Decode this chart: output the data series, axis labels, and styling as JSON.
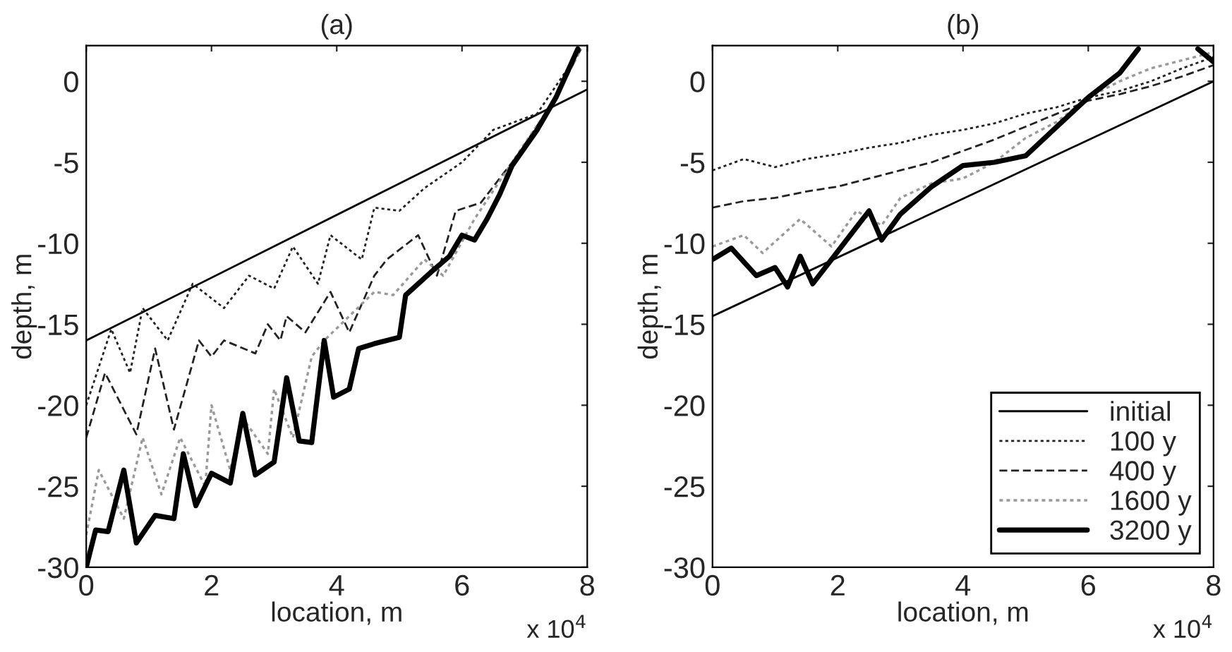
{
  "chart_data": [
    {
      "type": "line",
      "title": "(a)",
      "xlabel": "location, m",
      "ylabel": "depth, m",
      "annotations": [
        "x 10$^{4}$"
      ],
      "xlim": [
        0,
        8
      ],
      "ylim": [
        -30,
        2.2
      ],
      "xticks": [
        0,
        2,
        4,
        6,
        8
      ],
      "yticks": [
        -30,
        -25,
        -20,
        -15,
        -10,
        -5,
        0
      ],
      "grid": false,
      "legend": false,
      "series": [
        {
          "color": "#000000",
          "line_style": "solid",
          "x": [
            0,
            8
          ],
          "values": [
            -16,
            -0.5
          ]
        },
        {
          "color": "#222222",
          "line_style": "dotted",
          "x": [
            0,
            0.4,
            0.7,
            0.9,
            1.3,
            1.7,
            2.2,
            2.6,
            3.0,
            3.3,
            3.7,
            3.9,
            4.4,
            4.6,
            5.0,
            5.4,
            6.0,
            6.5,
            7.2,
            7.9
          ],
          "values": [
            -20,
            -15.3,
            -18,
            -14,
            -16,
            -12.5,
            -14,
            -12,
            -12.8,
            -10.2,
            -12.5,
            -9.5,
            -11,
            -7.8,
            -8,
            -6.6,
            -5,
            -3,
            -2,
            2
          ]
        },
        {
          "color": "#222222",
          "line_style": "dashed",
          "x": [
            0,
            0.3,
            0.8,
            1.1,
            1.4,
            1.8,
            2.0,
            2.2,
            2.7,
            2.9,
            3.1,
            3.2,
            3.5,
            3.9,
            4.2,
            4.6,
            4.8,
            5.3,
            5.6,
            5.9,
            6.3,
            6.9,
            7.5,
            7.9
          ],
          "values": [
            -22,
            -18,
            -21.8,
            -16.5,
            -21.5,
            -16,
            -17,
            -16,
            -16.8,
            -15,
            -16,
            -14.5,
            -15.5,
            -13,
            -15.5,
            -12,
            -11,
            -9.5,
            -12,
            -8,
            -7.5,
            -4.5,
            -1,
            2
          ]
        },
        {
          "color": "#999999",
          "line_style": "dotted",
          "x": [
            0,
            0.2,
            0.6,
            0.9,
            1.2,
            1.5,
            1.9,
            2.0,
            2.3,
            2.5,
            2.9,
            3.0,
            3.3,
            3.6,
            3.8,
            4.6,
            4.9,
            5.4,
            5.7,
            6.2,
            6.8,
            7.5,
            7.9
          ],
          "values": [
            -28,
            -24,
            -27,
            -22,
            -25.5,
            -22,
            -25,
            -20,
            -24,
            -20.8,
            -23,
            -19,
            -22,
            -17,
            -16,
            -13,
            -13.2,
            -11,
            -12,
            -8.5,
            -5,
            -1,
            2
          ]
        },
        {
          "color": "#000000",
          "line_style": "solid",
          "x": [
            0,
            0.15,
            0.35,
            0.6,
            0.8,
            1.1,
            1.4,
            1.55,
            1.75,
            2.0,
            2.3,
            2.5,
            2.7,
            3.0,
            3.2,
            3.4,
            3.6,
            3.8,
            3.95,
            4.2,
            4.35,
            4.6,
            5.0,
            5.1,
            5.5,
            5.8,
            6.0,
            6.2,
            6.4,
            6.6,
            6.8,
            7.2,
            7.5,
            7.85
          ],
          "values": [
            -30,
            -27.7,
            -27.8,
            -24,
            -28.5,
            -26.8,
            -27,
            -23,
            -26.2,
            -24.2,
            -24.8,
            -20.5,
            -24.3,
            -23.5,
            -18.3,
            -22.2,
            -22.3,
            -16,
            -19.5,
            -19,
            -16.5,
            -16.2,
            -15.8,
            -13.2,
            -11.8,
            -10.8,
            -9.5,
            -9.8,
            -8.5,
            -7,
            -5.2,
            -3,
            -1,
            2
          ]
        }
      ]
    },
    {
      "type": "line",
      "title": "(b)",
      "xlabel": "location, m",
      "ylabel": "depth, m",
      "annotations": [
        "x 10$^{4}$"
      ],
      "xlim": [
        0,
        8
      ],
      "ylim": [
        -30,
        2.2
      ],
      "xticks": [
        0,
        2,
        4,
        6,
        8
      ],
      "yticks": [
        -30,
        -25,
        -20,
        -15,
        -10,
        -5,
        0
      ],
      "grid": false,
      "legend": "bottom right",
      "series": [
        {
          "name": "initial",
          "color": "#000000",
          "line_style": "solid",
          "x": [
            0,
            8
          ],
          "values": [
            -14.5,
            0
          ]
        },
        {
          "name": "100 y",
          "color": "#222222",
          "line_style": "dotted",
          "x": [
            0,
            0.5,
            1.0,
            1.5,
            2.0,
            2.5,
            3.0,
            3.5,
            4.0,
            4.5,
            5.0,
            5.5,
            6.0,
            6.5,
            7.0,
            7.5,
            8.0
          ],
          "values": [
            -5.5,
            -4.8,
            -5.3,
            -4.8,
            -4.5,
            -4.1,
            -3.8,
            -3.3,
            -3,
            -2.6,
            -2,
            -1.6,
            -1,
            -0.6,
            0,
            0.8,
            1.5
          ]
        },
        {
          "name": "400 y",
          "color": "#222222",
          "line_style": "dashed",
          "x": [
            0,
            0.5,
            1.0,
            1.5,
            2.0,
            2.5,
            3.0,
            3.5,
            4.0,
            4.5,
            5.0,
            5.5,
            6.0,
            6.5,
            7.0,
            7.5,
            8.0
          ],
          "values": [
            -7.8,
            -7.4,
            -7.2,
            -6.8,
            -6.5,
            -6,
            -5.5,
            -5,
            -4.3,
            -3.6,
            -2.8,
            -2,
            -1.2,
            -0.8,
            -0.3,
            0.3,
            1
          ]
        },
        {
          "name": "1600 y",
          "color": "#999999",
          "line_style": "dotted",
          "x": [
            0,
            0.5,
            0.8,
            1.4,
            1.9,
            2.3,
            2.7,
            3.0,
            3.5,
            4.0,
            4.5,
            5.0,
            5.5,
            6.0,
            6.5,
            7.0,
            8.0
          ],
          "values": [
            -10.2,
            -9.5,
            -10.6,
            -8.5,
            -10.2,
            -8,
            -8.9,
            -7.2,
            -6.3,
            -6,
            -5,
            -3.5,
            -2.5,
            -1,
            0,
            0.8,
            1.8
          ]
        },
        {
          "name": "3200 y",
          "color": "#000000",
          "line_style": "solid",
          "x": [
            0,
            0.3,
            0.7,
            1.0,
            1.2,
            1.4,
            1.6,
            1.9,
            2.3,
            2.5,
            2.7,
            3.0,
            3.5,
            4.0,
            4.5,
            5.0,
            5.5,
            6.0,
            6.5,
            6.8,
            6.9,
            7.0,
            7.75,
            8.0
          ],
          "values": [
            -11,
            -10.3,
            -12,
            -11.5,
            -12.7,
            -10.8,
            -12.5,
            -11,
            -9,
            -8,
            -9.8,
            -8.2,
            -6.5,
            -5.2,
            -5,
            -4.6,
            -2.8,
            -1,
            0.5,
            2,
            null,
            null,
            2,
            1.2
          ]
        }
      ]
    }
  ]
}
